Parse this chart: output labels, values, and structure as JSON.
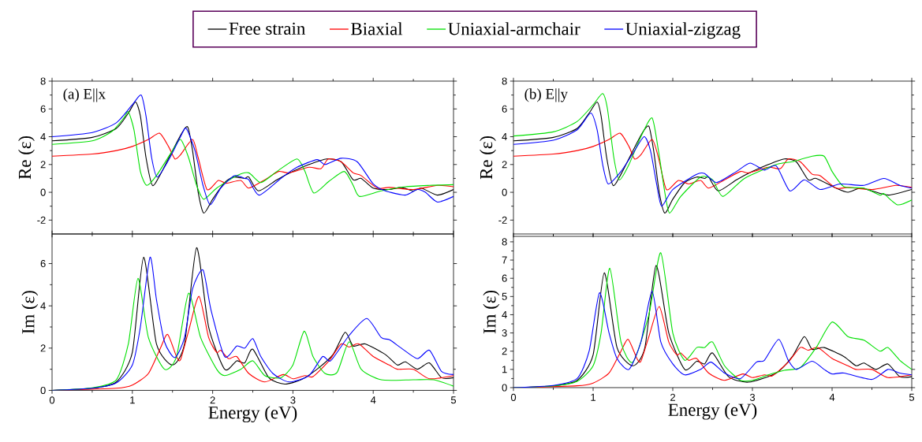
{
  "chart_data": [
    {
      "type": "line",
      "legend": "top",
      "annotations": [
        "(a) E||x"
      ],
      "ylabel": "Re (ε)",
      "xlim": [
        0,
        5
      ],
      "xticks": [
        0,
        1,
        2,
        3,
        4,
        5
      ],
      "ylim": [
        -3,
        8
      ],
      "yticks": [
        -2,
        0,
        2,
        4,
        6,
        8
      ],
      "tick_labels": "y",
      "series": [
        {
          "name": "Free strain",
          "color": "#000000",
          "x": [
            0,
            0.5,
            0.8,
            0.95,
            1.04,
            1.1,
            1.17,
            1.25,
            1.35,
            1.5,
            1.62,
            1.69,
            1.75,
            1.82,
            1.89,
            2.0,
            2.15,
            2.26,
            2.4,
            2.45,
            2.57,
            2.8,
            3.0,
            3.2,
            3.42,
            3.6,
            3.75,
            3.85,
            4.0,
            4.2,
            4.35,
            4.5,
            4.6,
            4.8,
            5.0
          ],
          "values": [
            3.7,
            3.95,
            4.6,
            5.7,
            6.5,
            5.5,
            2.5,
            0.5,
            1.3,
            3.0,
            4.3,
            4.7,
            3.0,
            0.0,
            -1.5,
            -0.5,
            0.7,
            1.1,
            1.0,
            1.1,
            0.1,
            0.9,
            1.5,
            2.0,
            2.4,
            2.2,
            0.9,
            1.0,
            0.3,
            0.2,
            0.35,
            0.1,
            0.3,
            -0.2,
            0.2
          ]
        },
        {
          "name": "Biaxial",
          "color": "#ff0000",
          "x": [
            0,
            0.5,
            0.8,
            1.0,
            1.2,
            1.34,
            1.45,
            1.53,
            1.6,
            1.75,
            1.82,
            1.93,
            2.07,
            2.17,
            2.35,
            2.45,
            2.65,
            2.82,
            2.95,
            3.2,
            3.35,
            3.44,
            3.6,
            3.75,
            3.85,
            4.05,
            4.2,
            4.5,
            4.8,
            5.0
          ],
          "values": [
            2.6,
            2.75,
            3.0,
            3.3,
            3.8,
            4.25,
            3.3,
            2.4,
            2.7,
            3.8,
            2.5,
            0.2,
            0.85,
            0.65,
            0.85,
            0.3,
            0.9,
            1.5,
            1.4,
            1.8,
            1.7,
            2.4,
            2.2,
            1.4,
            1.2,
            0.3,
            0.35,
            0.2,
            0.5,
            0.4
          ]
        },
        {
          "name": "Uniaxial-armchair",
          "color": "#00e000",
          "x": [
            0,
            0.5,
            0.75,
            0.9,
            0.95,
            1.02,
            1.1,
            1.18,
            1.3,
            1.5,
            1.6,
            1.7,
            1.8,
            1.89,
            2.05,
            2.3,
            2.45,
            2.6,
            2.8,
            3.05,
            3.15,
            3.26,
            3.45,
            3.64,
            3.75,
            3.83,
            4.1,
            4.4,
            4.7,
            5.0
          ],
          "values": [
            3.45,
            3.7,
            4.4,
            5.4,
            5.8,
            4.5,
            1.5,
            0.5,
            1.2,
            3.0,
            3.8,
            2.5,
            0.5,
            -0.5,
            0.3,
            1.2,
            1.4,
            0.7,
            1.5,
            2.4,
            1.5,
            -0.05,
            0.8,
            1.5,
            0.5,
            -0.3,
            0.1,
            0.4,
            0.5,
            0.55
          ]
        },
        {
          "name": "Uniaxial-zigzag",
          "color": "#0000ff",
          "x": [
            0,
            0.5,
            0.8,
            1.0,
            1.11,
            1.17,
            1.24,
            1.31,
            1.45,
            1.6,
            1.67,
            1.78,
            1.88,
            1.97,
            2.1,
            2.27,
            2.4,
            2.45,
            2.58,
            2.85,
            3.05,
            3.3,
            3.4,
            3.6,
            3.8,
            4.0,
            4.15,
            4.4,
            4.55,
            4.65,
            4.8,
            5.0
          ],
          "values": [
            4.0,
            4.3,
            5.0,
            6.3,
            7.0,
            5.5,
            2.5,
            1.1,
            2.3,
            4.0,
            4.6,
            3.0,
            0.5,
            -0.9,
            0.3,
            1.2,
            1.0,
            0.9,
            -0.2,
            1.0,
            1.8,
            2.35,
            2.0,
            2.45,
            2.2,
            0.6,
            0.1,
            -0.2,
            0.2,
            0.0,
            -0.7,
            -0.3
          ]
        }
      ]
    },
    {
      "type": "line",
      "xlabel": "Energy (eV)",
      "ylabel": "Im (ε)",
      "xlim": [
        0,
        5
      ],
      "xticks": [
        0,
        1,
        2,
        3,
        4,
        5
      ],
      "ylim": [
        0,
        7.4
      ],
      "yticks": [
        0,
        2,
        4,
        6
      ],
      "series": [
        {
          "color": "#000000",
          "x": [
            0,
            0.5,
            0.8,
            1.0,
            1.14,
            1.3,
            1.5,
            1.65,
            1.8,
            1.95,
            2.15,
            2.3,
            2.4,
            2.5,
            2.7,
            2.9,
            3.1,
            3.3,
            3.5,
            3.65,
            3.75,
            3.9,
            4.15,
            4.3,
            4.4,
            4.55,
            4.7,
            4.85,
            5.0
          ],
          "values": [
            0,
            0.1,
            0.4,
            1.8,
            6.3,
            2.2,
            1.2,
            2.2,
            6.75,
            3.0,
            1.0,
            1.4,
            1.3,
            1.95,
            0.6,
            0.3,
            0.5,
            1.0,
            1.7,
            2.75,
            2.1,
            2.2,
            1.7,
            1.2,
            1.35,
            1.0,
            1.3,
            0.6,
            0.6
          ]
        },
        {
          "color": "#ff0000",
          "x": [
            0,
            0.8,
            1.0,
            1.2,
            1.35,
            1.44,
            1.55,
            1.6,
            1.7,
            1.83,
            1.95,
            2.05,
            2.1,
            2.2,
            2.3,
            2.45,
            2.65,
            2.88,
            3.0,
            3.15,
            3.25,
            3.45,
            3.6,
            3.7,
            3.82,
            4.0,
            4.2,
            4.3,
            4.5,
            4.7,
            5.0
          ],
          "values": [
            0,
            0.1,
            0.25,
            0.8,
            2.0,
            2.65,
            1.6,
            1.45,
            2.8,
            4.45,
            2.5,
            1.8,
            1.9,
            1.5,
            1.6,
            0.8,
            0.4,
            0.75,
            0.55,
            0.7,
            0.65,
            1.4,
            2.2,
            2.05,
            2.2,
            1.6,
            1.2,
            1.0,
            1.0,
            0.55,
            0.7
          ]
        },
        {
          "color": "#00e000",
          "x": [
            0,
            0.5,
            0.8,
            0.95,
            1.07,
            1.2,
            1.4,
            1.55,
            1.7,
            1.85,
            2.05,
            2.15,
            2.35,
            2.5,
            2.65,
            2.85,
            3.0,
            3.14,
            3.25,
            3.4,
            3.55,
            3.7,
            3.85,
            4.1,
            4.5,
            4.75,
            5.0
          ],
          "values": [
            0,
            0.12,
            0.5,
            2.2,
            5.3,
            2.5,
            1.0,
            1.6,
            4.6,
            2.5,
            1.0,
            0.7,
            1.0,
            1.4,
            0.7,
            0.6,
            1.2,
            2.8,
            1.6,
            0.8,
            0.85,
            2.3,
            1.0,
            0.5,
            0.5,
            0.5,
            0.2
          ]
        },
        {
          "color": "#0000ff",
          "x": [
            0,
            0.5,
            0.8,
            1.0,
            1.1,
            1.22,
            1.3,
            1.4,
            1.53,
            1.65,
            1.75,
            1.88,
            1.98,
            2.15,
            2.3,
            2.4,
            2.5,
            2.6,
            2.75,
            2.95,
            3.2,
            3.37,
            3.47,
            3.7,
            3.92,
            4.1,
            4.2,
            4.35,
            4.55,
            4.7,
            4.85,
            5.0
          ],
          "values": [
            0,
            0.1,
            0.35,
            1.2,
            3.0,
            6.3,
            4.3,
            2.3,
            1.55,
            2.5,
            4.8,
            5.7,
            3.8,
            1.6,
            2.1,
            2.0,
            2.45,
            1.6,
            0.8,
            0.4,
            0.7,
            1.6,
            1.4,
            2.6,
            3.4,
            2.5,
            2.4,
            2.0,
            1.5,
            1.9,
            0.9,
            0.75
          ]
        }
      ]
    },
    {
      "type": "line",
      "annotations": [
        "(b) E||y"
      ],
      "ylabel": "Re (ε)",
      "xlim": [
        0,
        5
      ],
      "xticks": [
        0,
        1,
        2,
        3,
        4,
        5
      ],
      "ylim": [
        -3,
        8
      ],
      "yticks": [
        -2,
        0,
        2,
        4,
        6,
        8
      ],
      "tick_labels": "y",
      "series": [
        {
          "color": "#000000",
          "x": [
            0,
            0.5,
            0.8,
            0.95,
            1.05,
            1.1,
            1.17,
            1.25,
            1.35,
            1.5,
            1.62,
            1.7,
            1.76,
            1.83,
            1.9,
            2.0,
            2.15,
            2.3,
            2.4,
            2.45,
            2.57,
            2.8,
            3.0,
            3.2,
            3.4,
            3.55,
            3.7,
            3.8,
            4.05,
            4.2,
            4.35,
            4.5,
            4.71,
            5.0
          ],
          "values": [
            3.7,
            3.95,
            4.6,
            5.7,
            6.5,
            5.5,
            2.5,
            0.5,
            1.3,
            3.0,
            4.3,
            4.75,
            3.0,
            0.0,
            -1.5,
            -0.5,
            0.7,
            1.1,
            1.0,
            1.1,
            0.1,
            0.9,
            1.5,
            2.0,
            2.4,
            2.2,
            0.9,
            1.0,
            0.3,
            0.0,
            0.3,
            0.1,
            -0.2,
            0.2
          ]
        },
        {
          "color": "#ff0000",
          "x": [
            0,
            0.5,
            0.8,
            1.0,
            1.2,
            1.34,
            1.45,
            1.52,
            1.6,
            1.74,
            1.82,
            1.92,
            2.07,
            2.2,
            2.35,
            2.45,
            2.65,
            2.85,
            2.95,
            3.2,
            3.35,
            3.45,
            3.6,
            3.75,
            3.85,
            4.05,
            4.2,
            4.5,
            4.8,
            5.0
          ],
          "values": [
            2.6,
            2.75,
            3.0,
            3.3,
            3.8,
            4.25,
            3.3,
            2.4,
            2.7,
            3.8,
            2.5,
            0.2,
            0.85,
            0.6,
            0.85,
            0.3,
            0.9,
            1.5,
            1.4,
            1.8,
            1.7,
            2.4,
            2.2,
            1.3,
            1.2,
            0.3,
            0.35,
            0.2,
            0.5,
            0.35
          ]
        },
        {
          "color": "#00e000",
          "x": [
            0,
            0.5,
            0.8,
            1.0,
            1.12,
            1.18,
            1.26,
            1.33,
            1.45,
            1.6,
            1.74,
            1.82,
            1.9,
            1.96,
            2.1,
            2.35,
            2.5,
            2.63,
            2.9,
            3.3,
            3.5,
            3.75,
            3.9,
            4.0,
            4.15,
            4.4,
            4.6,
            4.65,
            4.82,
            5.0
          ],
          "values": [
            4.05,
            4.35,
            5.1,
            6.3,
            7.1,
            6.0,
            2.5,
            0.9,
            2.0,
            4.0,
            5.35,
            3.0,
            0.0,
            -1.5,
            -0.3,
            1.1,
            0.9,
            -0.3,
            1.0,
            2.0,
            2.2,
            2.6,
            2.6,
            1.5,
            0.4,
            0.3,
            -0.2,
            -0.1,
            -0.9,
            -0.55
          ]
        },
        {
          "color": "#0000ff",
          "x": [
            0,
            0.5,
            0.8,
            0.97,
            1.05,
            1.12,
            1.19,
            1.35,
            1.5,
            1.64,
            1.72,
            1.8,
            1.86,
            2.0,
            2.3,
            2.4,
            2.55,
            2.8,
            2.97,
            3.15,
            3.3,
            3.47,
            3.65,
            3.85,
            4.1,
            4.4,
            4.65,
            4.85,
            5.0
          ],
          "values": [
            3.45,
            3.75,
            4.5,
            5.7,
            4.5,
            2.0,
            0.6,
            1.5,
            2.8,
            4.0,
            3.0,
            0.5,
            -1.0,
            0.2,
            1.3,
            1.35,
            0.7,
            1.5,
            2.1,
            1.6,
            1.9,
            0.1,
            0.9,
            0.2,
            0.6,
            0.5,
            1.0,
            0.5,
            0.3
          ]
        }
      ]
    },
    {
      "type": "line",
      "xlabel": "Energy (eV)",
      "ylabel": "Im (ε)",
      "xlim": [
        0,
        5
      ],
      "xticks": [
        0,
        1,
        2,
        3,
        4,
        5
      ],
      "ylim": [
        0,
        8.3
      ],
      "yticks": [
        0,
        1,
        2,
        3,
        4,
        5,
        6,
        7,
        8
      ],
      "series": [
        {
          "color": "#000000",
          "x": [
            0,
            0.5,
            0.8,
            1.0,
            1.14,
            1.3,
            1.5,
            1.65,
            1.79,
            1.95,
            2.15,
            2.3,
            2.4,
            2.5,
            2.7,
            2.95,
            3.3,
            3.5,
            3.65,
            3.75,
            3.9,
            4.15,
            4.3,
            4.4,
            4.55,
            4.7,
            4.85,
            5.0
          ],
          "values": [
            0,
            0.1,
            0.4,
            1.8,
            6.3,
            2.2,
            1.2,
            2.2,
            6.7,
            3.0,
            1.0,
            1.45,
            1.3,
            1.9,
            0.6,
            0.3,
            0.8,
            1.7,
            2.8,
            2.1,
            2.2,
            1.7,
            1.2,
            1.35,
            1.0,
            1.3,
            0.6,
            0.6
          ]
        },
        {
          "color": "#ff0000",
          "x": [
            0,
            0.8,
            1.0,
            1.2,
            1.35,
            1.44,
            1.55,
            1.6,
            1.7,
            1.83,
            1.95,
            2.05,
            2.1,
            2.2,
            2.3,
            2.45,
            2.65,
            2.88,
            3.0,
            3.15,
            3.25,
            3.45,
            3.6,
            3.7,
            3.82,
            4.0,
            4.2,
            4.3,
            4.5,
            4.7,
            5.0
          ],
          "values": [
            0,
            0.1,
            0.25,
            0.8,
            2.0,
            2.65,
            1.6,
            1.45,
            2.8,
            4.45,
            2.5,
            1.8,
            1.9,
            1.5,
            1.6,
            0.8,
            0.4,
            0.75,
            0.55,
            0.7,
            0.65,
            1.4,
            2.2,
            2.05,
            2.2,
            1.6,
            1.2,
            1.0,
            1.0,
            0.55,
            0.7
          ]
        },
        {
          "color": "#00e000",
          "x": [
            0,
            0.5,
            0.8,
            1.0,
            1.1,
            1.21,
            1.35,
            1.5,
            1.7,
            1.85,
            2.0,
            2.15,
            2.3,
            2.4,
            2.5,
            2.65,
            2.85,
            3.0,
            3.2,
            3.4,
            3.6,
            3.8,
            4.0,
            4.2,
            4.4,
            4.6,
            4.7,
            4.85,
            5.0
          ],
          "values": [
            0,
            0.1,
            0.35,
            1.2,
            3.0,
            6.55,
            2.5,
            1.4,
            4.0,
            7.4,
            3.0,
            1.5,
            2.2,
            2.2,
            2.5,
            1.2,
            0.4,
            0.4,
            0.7,
            0.95,
            1.1,
            2.2,
            3.6,
            2.8,
            2.6,
            2.0,
            2.2,
            1.5,
            1.0
          ]
        },
        {
          "color": "#0000ff",
          "x": [
            0,
            0.5,
            0.8,
            0.95,
            1.08,
            1.2,
            1.3,
            1.45,
            1.6,
            1.74,
            1.85,
            2.0,
            2.15,
            2.35,
            2.48,
            2.65,
            2.85,
            3.05,
            3.15,
            3.33,
            3.45,
            3.55,
            3.75,
            3.9,
            4.0,
            4.15,
            4.5,
            4.7,
            4.85,
            5.0
          ],
          "values": [
            0,
            0.12,
            0.5,
            2.0,
            5.2,
            3.0,
            1.6,
            1.0,
            2.5,
            5.3,
            2.5,
            1.3,
            0.7,
            1.0,
            1.4,
            0.8,
            0.5,
            1.4,
            1.5,
            2.65,
            1.5,
            1.0,
            1.45,
            1.0,
            0.75,
            0.8,
            0.45,
            1.0,
            0.8,
            0.7
          ]
        }
      ]
    }
  ]
}
